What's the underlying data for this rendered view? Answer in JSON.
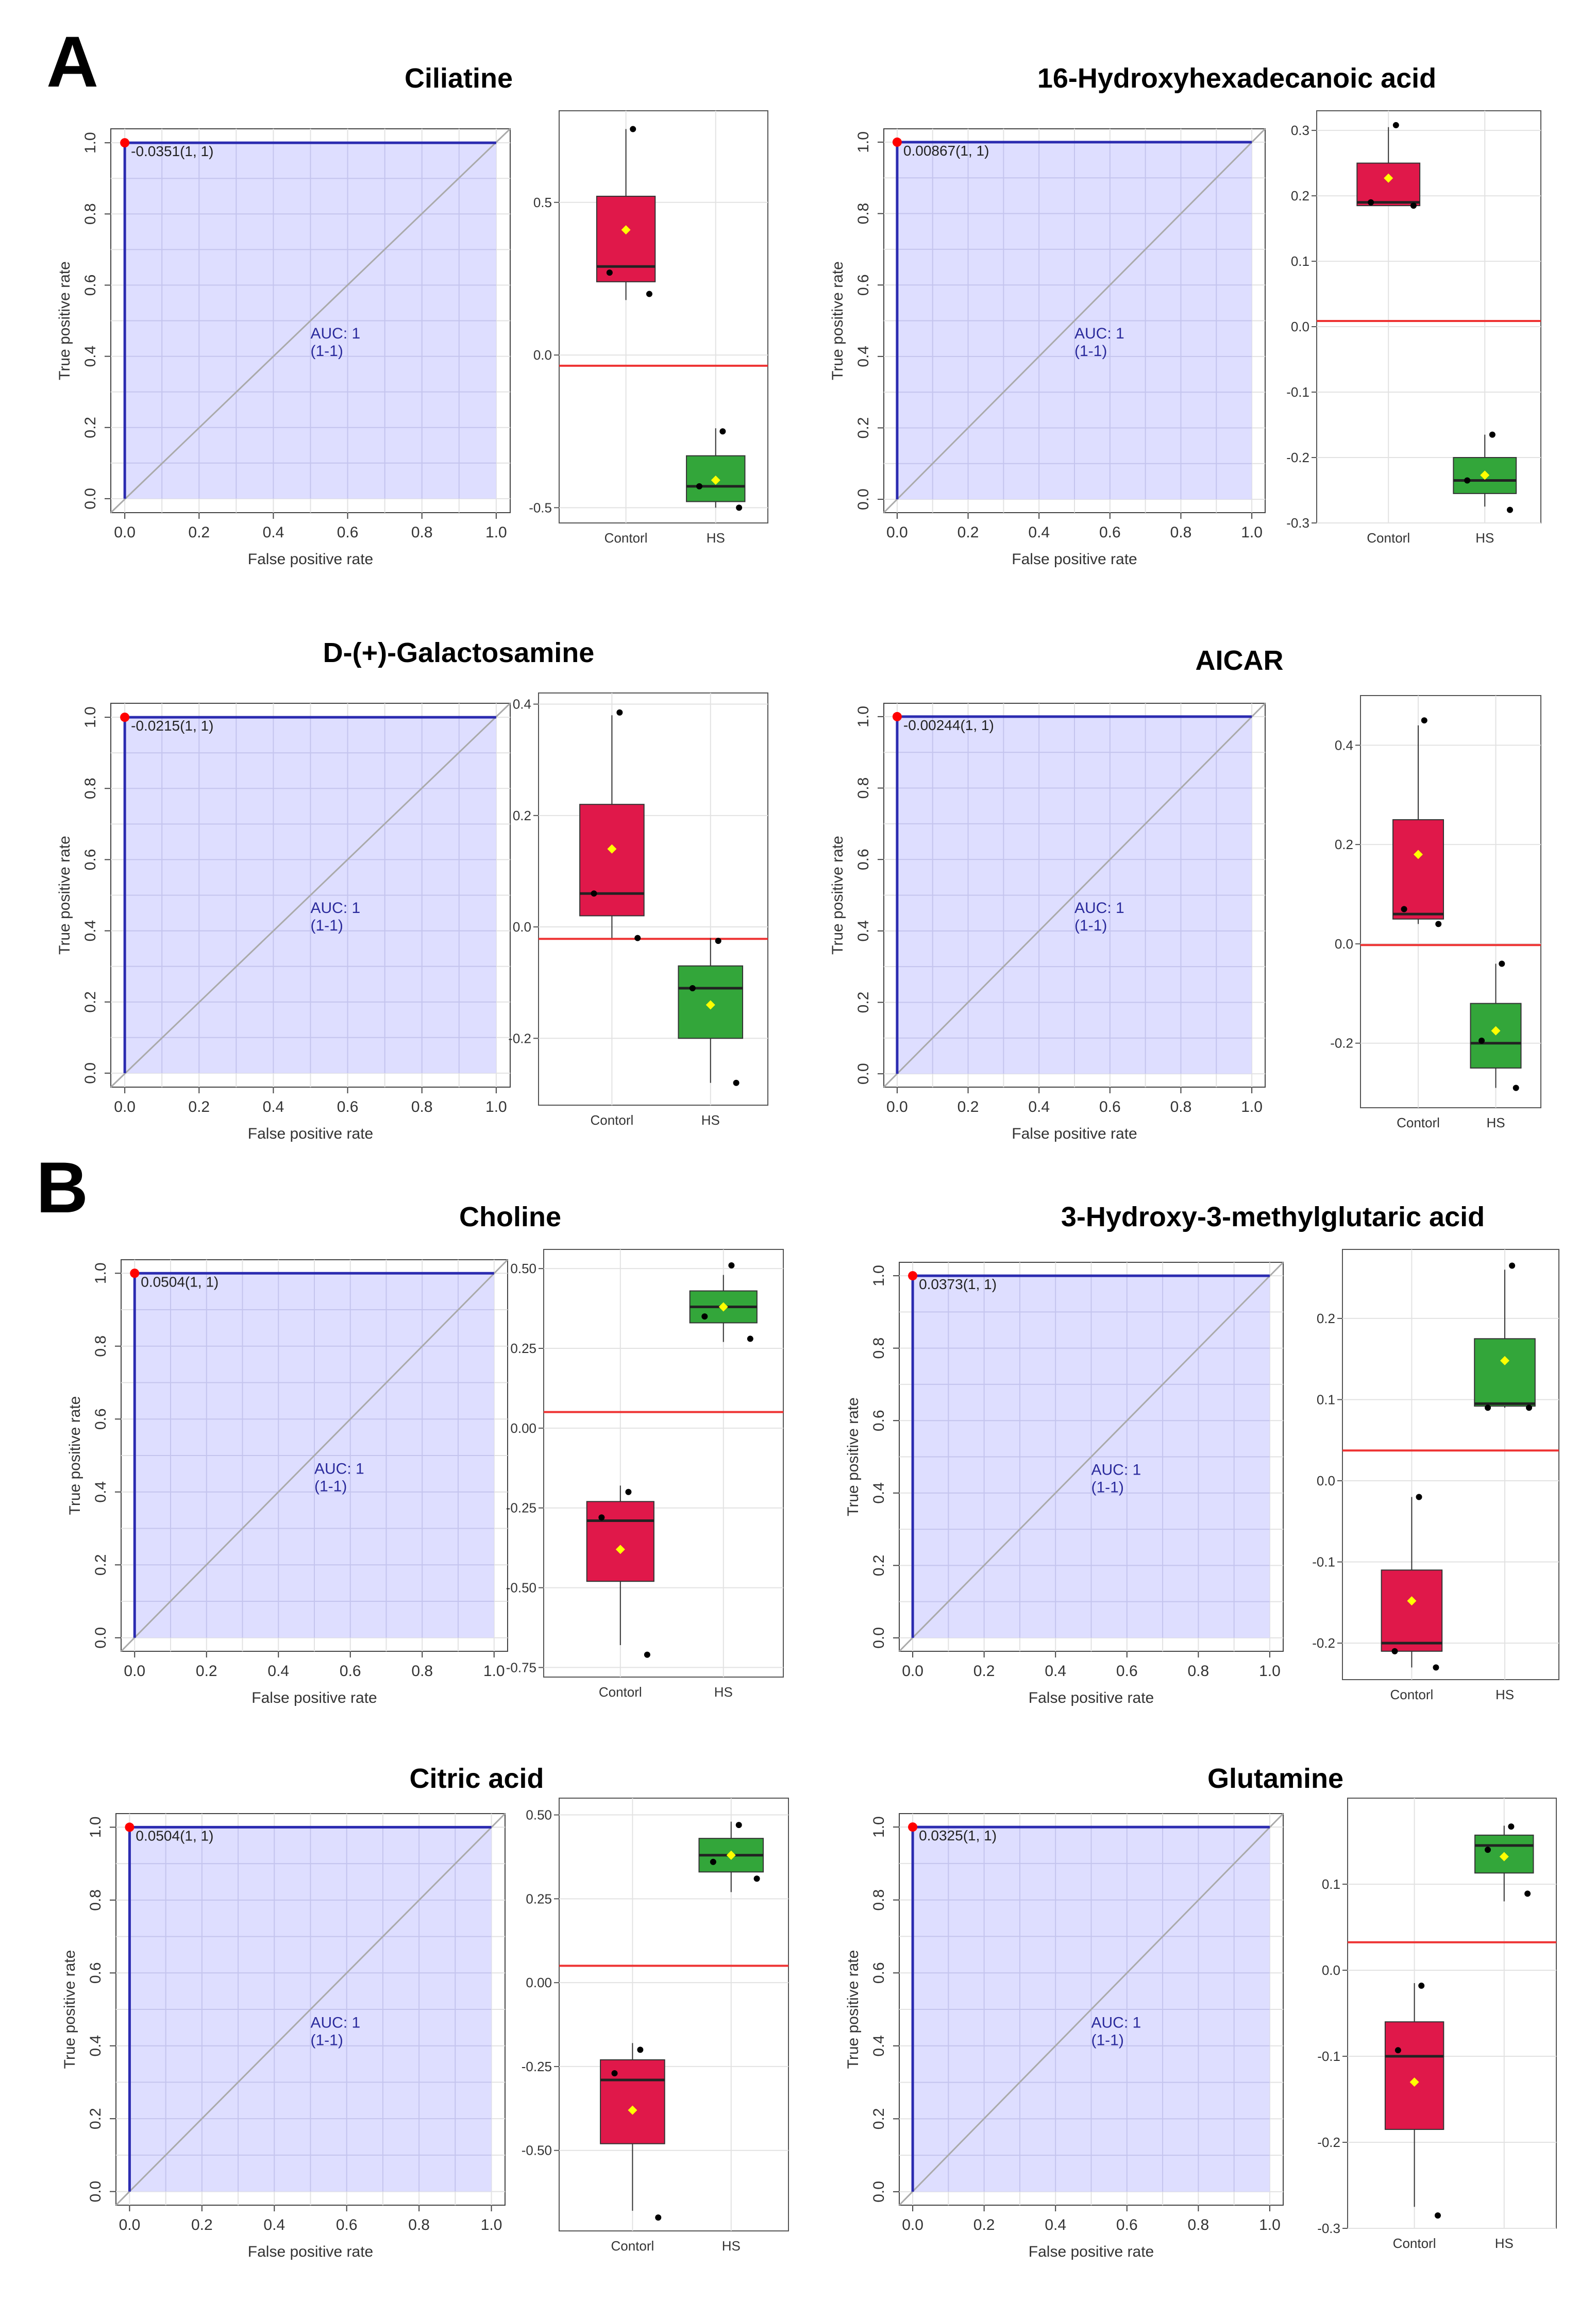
{
  "sections": [
    {
      "label": "A"
    },
    {
      "label": "B"
    }
  ],
  "roc_common": {
    "xlabel": "False positive rate",
    "ylabel": "True positive rate",
    "ticks": [
      "0.0",
      "0.2",
      "0.4",
      "0.6",
      "0.8",
      "1.0"
    ],
    "auc_line1": "AUC: 1",
    "auc_line2": "(1-1)",
    "categories": [
      "Contorl",
      "HS"
    ]
  },
  "colors": {
    "roc_fill": "#d8d8ff",
    "roc_line": "#2b2bb0",
    "diagonal": "#aaaaaa",
    "point": "#ff0000",
    "control_box": "#e0184a",
    "hs_box": "#33a63a",
    "cutoff_line": "#ee3333",
    "mean_marker": "#ffff00",
    "grid": "#e2e2e2",
    "auc_text": "#2a2a9c"
  },
  "chart_data": [
    {
      "type": "roc+box",
      "section": "A",
      "title": "Ciliatine",
      "roc": {
        "fpr": [
          0,
          0,
          1
        ],
        "tpr": [
          0,
          1,
          1
        ],
        "auc": 1,
        "point_label": "-0.0351(1, 1)"
      },
      "box": {
        "ylim": [
          -0.55,
          0.8
        ],
        "ticks": [
          0.5,
          0.0,
          -0.5
        ],
        "tick_labels": [
          "0.5",
          "0.0",
          "-0.5"
        ],
        "cutoff": -0.0351,
        "groups": [
          {
            "name": "Contorl",
            "q1": 0.24,
            "median": 0.29,
            "q3": 0.52,
            "lo": 0.18,
            "hi": 0.74,
            "mean": 0.41,
            "points": [
              0.74,
              0.27,
              0.2
            ]
          },
          {
            "name": "HS",
            "q1": -0.48,
            "median": -0.43,
            "q3": -0.33,
            "lo": -0.5,
            "hi": -0.24,
            "mean": -0.41,
            "points": [
              -0.25,
              -0.43,
              -0.5
            ]
          }
        ]
      }
    },
    {
      "type": "roc+box",
      "section": "A",
      "title": "16-Hydroxyhexadecanoic acid",
      "roc": {
        "fpr": [
          0,
          0,
          1
        ],
        "tpr": [
          0,
          1,
          1
        ],
        "auc": 1,
        "point_label": "0.00867(1, 1)"
      },
      "box": {
        "ylim": [
          -0.3,
          0.33
        ],
        "ticks": [
          0.3,
          0.2,
          0.1,
          0.0,
          -0.1,
          -0.2,
          -0.3
        ],
        "tick_labels": [
          "0.3",
          "0.2",
          "0.1",
          "0.0",
          "-0.1",
          "-0.2",
          "-0.3"
        ],
        "cutoff": 0.00867,
        "groups": [
          {
            "name": "Contorl",
            "q1": 0.185,
            "median": 0.19,
            "q3": 0.25,
            "lo": 0.185,
            "hi": 0.305,
            "mean": 0.227,
            "points": [
              0.308,
              0.19,
              0.185
            ]
          },
          {
            "name": "HS",
            "q1": -0.255,
            "median": -0.235,
            "q3": -0.2,
            "lo": -0.275,
            "hi": -0.165,
            "mean": -0.227,
            "points": [
              -0.165,
              -0.235,
              -0.28
            ]
          }
        ]
      }
    },
    {
      "type": "roc+box",
      "section": "A",
      "title": "D-(+)-Galactosamine",
      "roc": {
        "fpr": [
          0,
          0,
          1
        ],
        "tpr": [
          0,
          1,
          1
        ],
        "auc": 1,
        "point_label": "-0.0215(1, 1)"
      },
      "box": {
        "ylim": [
          -0.32,
          0.42
        ],
        "ticks": [
          0.4,
          0.2,
          0.0,
          -0.2
        ],
        "tick_labels": [
          "0.4",
          "0.2",
          "0.0",
          "-0.2"
        ],
        "cutoff": -0.0215,
        "groups": [
          {
            "name": "Contorl",
            "q1": 0.02,
            "median": 0.06,
            "q3": 0.22,
            "lo": -0.02,
            "hi": 0.38,
            "mean": 0.14,
            "points": [
              0.385,
              0.06,
              -0.02
            ]
          },
          {
            "name": "HS",
            "q1": -0.2,
            "median": -0.11,
            "q3": -0.07,
            "lo": -0.28,
            "hi": -0.02,
            "mean": -0.14,
            "points": [
              -0.025,
              -0.11,
              -0.28
            ]
          }
        ]
      }
    },
    {
      "type": "roc+box",
      "section": "A",
      "title": "AICAR",
      "roc": {
        "fpr": [
          0,
          0,
          1
        ],
        "tpr": [
          0,
          1,
          1
        ],
        "auc": 1,
        "point_label": "-0.00244(1, 1)"
      },
      "box": {
        "ylim": [
          -0.33,
          0.5
        ],
        "ticks": [
          0.4,
          0.2,
          0.0,
          -0.2
        ],
        "tick_labels": [
          "0.4",
          "0.2",
          "0.0",
          "-0.2"
        ],
        "cutoff": -0.00244,
        "groups": [
          {
            "name": "Contorl",
            "q1": 0.05,
            "median": 0.06,
            "q3": 0.25,
            "lo": 0.04,
            "hi": 0.44,
            "mean": 0.18,
            "points": [
              0.45,
              0.07,
              0.04
            ]
          },
          {
            "name": "HS",
            "q1": -0.25,
            "median": -0.2,
            "q3": -0.12,
            "lo": -0.29,
            "hi": -0.04,
            "mean": -0.175,
            "points": [
              -0.04,
              -0.195,
              -0.29
            ]
          }
        ]
      }
    },
    {
      "type": "roc+box",
      "section": "B",
      "title": "Choline",
      "roc": {
        "fpr": [
          0,
          0,
          1
        ],
        "tpr": [
          0,
          1,
          1
        ],
        "auc": 1,
        "point_label": "0.0504(1, 1)"
      },
      "box": {
        "ylim": [
          -0.78,
          0.56
        ],
        "ticks": [
          0.5,
          0.25,
          0.0,
          -0.25,
          -0.5,
          -0.75
        ],
        "tick_labels": [
          "0.50",
          "0.25",
          "0.00",
          "-0.25",
          "-0.50",
          "-0.75"
        ],
        "cutoff": 0.0504,
        "groups": [
          {
            "name": "Contorl",
            "q1": -0.48,
            "median": -0.29,
            "q3": -0.23,
            "lo": -0.68,
            "hi": -0.18,
            "mean": -0.38,
            "points": [
              -0.2,
              -0.28,
              -0.71
            ]
          },
          {
            "name": "HS",
            "q1": 0.33,
            "median": 0.38,
            "q3": 0.43,
            "lo": 0.27,
            "hi": 0.48,
            "mean": 0.38,
            "points": [
              0.51,
              0.35,
              0.28
            ]
          }
        ]
      }
    },
    {
      "type": "roc+box",
      "section": "B",
      "title": "3-Hydroxy-3-methylglutaric acid",
      "roc": {
        "fpr": [
          0,
          0,
          1
        ],
        "tpr": [
          0,
          1,
          1
        ],
        "auc": 1,
        "point_label": "0.0373(1, 1)"
      },
      "box": {
        "ylim": [
          -0.245,
          0.285
        ],
        "ticks": [
          0.2,
          0.1,
          0.0,
          -0.1,
          -0.2
        ],
        "tick_labels": [
          "0.2",
          "0.1",
          "0.0",
          "-0.1",
          "-0.2"
        ],
        "cutoff": 0.0373,
        "groups": [
          {
            "name": "Contorl",
            "q1": -0.21,
            "median": -0.2,
            "q3": -0.11,
            "lo": -0.23,
            "hi": -0.02,
            "mean": -0.148,
            "points": [
              -0.02,
              -0.21,
              -0.23
            ]
          },
          {
            "name": "HS",
            "q1": 0.092,
            "median": 0.095,
            "q3": 0.175,
            "lo": 0.09,
            "hi": 0.26,
            "mean": 0.148,
            "points": [
              0.265,
              0.09,
              0.09
            ]
          }
        ]
      }
    },
    {
      "type": "roc+box",
      "section": "B",
      "title": "Citric acid",
      "roc": {
        "fpr": [
          0,
          0,
          1
        ],
        "tpr": [
          0,
          1,
          1
        ],
        "auc": 1,
        "point_label": "0.0504(1, 1)"
      },
      "box": {
        "ylim": [
          -0.74,
          0.55
        ],
        "ticks": [
          0.5,
          0.25,
          0.0,
          -0.25,
          -0.5
        ],
        "tick_labels": [
          "0.50",
          "0.25",
          "0.00",
          "-0.25",
          "-0.50"
        ],
        "cutoff": 0.0504,
        "groups": [
          {
            "name": "Contorl",
            "q1": -0.48,
            "median": -0.29,
            "q3": -0.23,
            "lo": -0.68,
            "hi": -0.18,
            "mean": -0.38,
            "points": [
              -0.2,
              -0.27,
              -0.7
            ]
          },
          {
            "name": "HS",
            "q1": 0.33,
            "median": 0.38,
            "q3": 0.43,
            "lo": 0.27,
            "hi": 0.48,
            "mean": 0.38,
            "points": [
              0.47,
              0.36,
              0.31
            ]
          }
        ]
      }
    },
    {
      "type": "roc+box",
      "section": "B",
      "title": "Glutamine",
      "roc": {
        "fpr": [
          0,
          0,
          1
        ],
        "tpr": [
          0,
          1,
          1
        ],
        "auc": 1,
        "point_label": "0.0325(1, 1)"
      },
      "box": {
        "ylim": [
          -0.3,
          0.2
        ],
        "ticks": [
          0.1,
          0.0,
          -0.1,
          -0.2,
          -0.3
        ],
        "tick_labels": [
          "0.1",
          "0.0",
          "-0.1",
          "-0.2",
          "-0.3"
        ],
        "cutoff": 0.0325,
        "groups": [
          {
            "name": "Contorl",
            "q1": -0.185,
            "median": -0.1,
            "q3": -0.06,
            "lo": -0.275,
            "hi": -0.015,
            "mean": -0.13,
            "points": [
              -0.018,
              -0.093,
              -0.285
            ]
          },
          {
            "name": "HS",
            "q1": 0.113,
            "median": 0.145,
            "q3": 0.157,
            "lo": 0.08,
            "hi": 0.168,
            "mean": 0.132,
            "points": [
              0.167,
              0.14,
              0.089
            ]
          }
        ]
      }
    }
  ]
}
